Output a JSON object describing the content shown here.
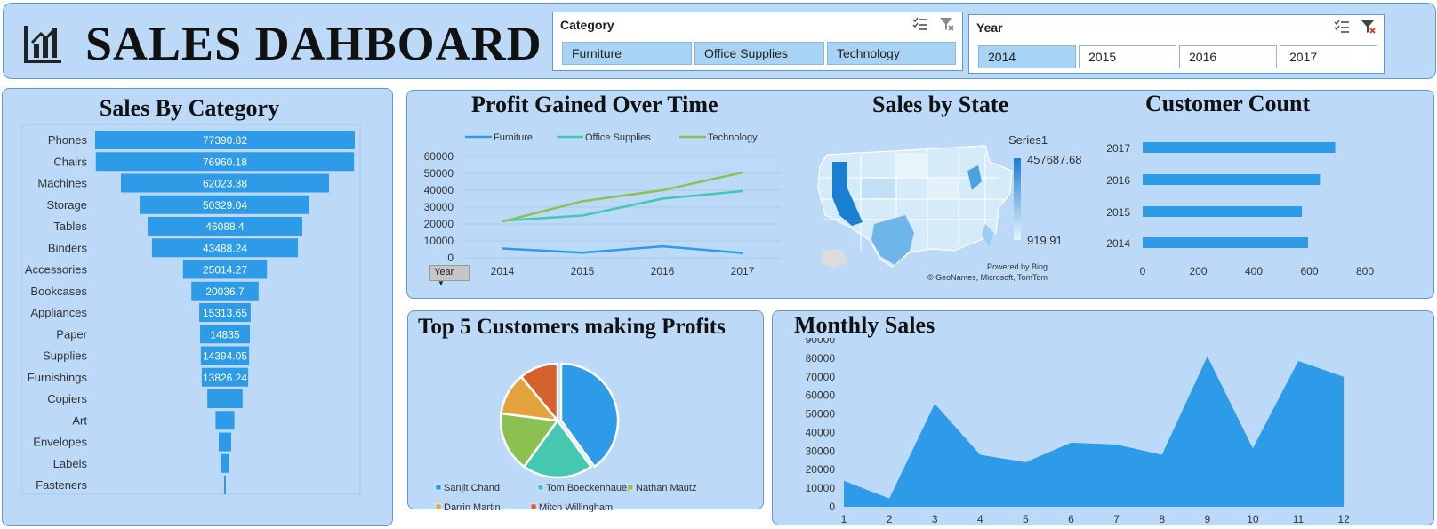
{
  "header": {
    "title": "SALES DAHBOARD",
    "icon": "bar-chart-icon"
  },
  "slicers": {
    "category": {
      "label": "Category",
      "items": [
        "Furniture",
        "Office Supplies",
        "Technology"
      ],
      "selected": [
        "Furniture",
        "Office Supplies",
        "Technology"
      ]
    },
    "year": {
      "label": "Year",
      "items": [
        "2014",
        "2015",
        "2016",
        "2017"
      ],
      "selected": [
        "2014"
      ]
    }
  },
  "sales_by_category": {
    "title": "Sales By Category"
  },
  "profit_over_time": {
    "title": "Profit Gained Over Time",
    "filter_button": "Year"
  },
  "sales_by_state": {
    "title": "Sales by State",
    "legend_title": "Series1",
    "max_label": "457687.68",
    "min_label": "919.91",
    "credit1": "Powered by Bing",
    "credit2": "© GeoNames, Microsoft, TomTom"
  },
  "customer_count": {
    "title": "Customer Count"
  },
  "top5": {
    "title": "Top 5 Customers making Profits"
  },
  "monthly_sales": {
    "title": "Monthly Sales"
  },
  "colors": {
    "panel": "#bcd9f7",
    "bar": "#2e9be8",
    "furniture": "#2e9be8",
    "office_supplies": "#45c8b0",
    "technology": "#8cc152",
    "pie": [
      "#2e9be8",
      "#45c8b0",
      "#8cc152",
      "#e3a23c",
      "#d5622e"
    ]
  },
  "chart_data": [
    {
      "id": "sales_by_category",
      "type": "bar",
      "title": "Sales By Category",
      "categories": [
        "Phones",
        "Chairs",
        "Machines",
        "Storage",
        "Tables",
        "Binders",
        "Accessories",
        "Bookcases",
        "Appliances",
        "Paper",
        "Supplies",
        "Furnishings",
        "Copiers",
        "Art",
        "Envelopes",
        "Labels",
        "Fasteners"
      ],
      "values": [
        77390.82,
        76960.18,
        62023.38,
        50329.04,
        46088.4,
        43488.24,
        25014.27,
        20036.7,
        15313.65,
        14835,
        14394.05,
        13826.24,
        10500,
        5600,
        3700,
        2500,
        400
      ],
      "value_labels": [
        "77390.82",
        "76960.18",
        "62023.38",
        "50329.04",
        "46088.4",
        "43488.24",
        "25014.27",
        "20036.7",
        "15313.65",
        "14835",
        "14394.05",
        "13826.24",
        "",
        "",
        "",
        "",
        ""
      ]
    },
    {
      "id": "profit_over_time",
      "type": "line",
      "title": "Profit Gained Over Time",
      "x": [
        "2014",
        "2015",
        "2016",
        "2017"
      ],
      "series": [
        {
          "name": "Furniture",
          "values": [
            5500,
            3000,
            6800,
            2800
          ]
        },
        {
          "name": "Office Supplies",
          "values": [
            22000,
            25000,
            35000,
            39500
          ]
        },
        {
          "name": "Technology",
          "values": [
            21500,
            33500,
            40000,
            50500
          ]
        }
      ],
      "yticks": [
        "0",
        "10000",
        "20000",
        "30000",
        "40000",
        "50000",
        "60000"
      ],
      "ylim": [
        0,
        60000
      ]
    },
    {
      "id": "customer_count",
      "type": "bar",
      "title": "Customer Count",
      "categories": [
        "2017",
        "2016",
        "2015",
        "2014"
      ],
      "values": [
        693,
        638,
        573,
        595
      ],
      "xticks": [
        "0",
        "200",
        "400",
        "600",
        "800"
      ],
      "xlim": [
        0,
        800
      ]
    },
    {
      "id": "top5",
      "type": "pie",
      "title": "Top 5 Customers making Profits",
      "labels": [
        "Sanjit Chand",
        "Tom Boeckenhauer",
        "Nathan Mautz",
        "Darrin Martin",
        "Mitch Willingham"
      ],
      "values": [
        40,
        20,
        17,
        12,
        11
      ]
    },
    {
      "id": "monthly_sales",
      "type": "area",
      "title": "Monthly Sales",
      "x": [
        "1",
        "2",
        "3",
        "4",
        "5",
        "6",
        "7",
        "8",
        "9",
        "10",
        "11",
        "12"
      ],
      "values": [
        14000,
        4500,
        55500,
        28000,
        24000,
        34500,
        33500,
        28000,
        81000,
        31500,
        78500,
        70000
      ],
      "yticks": [
        "0",
        "10000",
        "20000",
        "30000",
        "40000",
        "50000",
        "60000",
        "70000",
        "80000",
        "90000"
      ],
      "ylim": [
        0,
        90000
      ]
    }
  ]
}
